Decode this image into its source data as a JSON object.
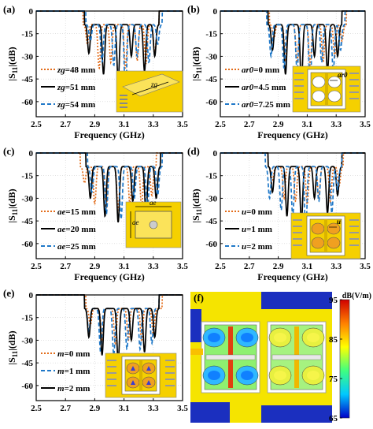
{
  "figure": {
    "colors": {
      "orange": "#e36c1a",
      "black": "#000000",
      "blue": "#1f78c8",
      "grid": "#cfcfcf",
      "inset_yellow": "#f5d000",
      "inset_orange": "#f0a020",
      "inset_bg_blue": "#1b2fbf",
      "inset_white": "#ffffff"
    },
    "field_map": {
      "label": "(f)",
      "colorbar_title": "dB(V/m)",
      "colorbar_ticks": [
        "95",
        "85",
        "75",
        "65"
      ],
      "colorbar_range": [
        65,
        95
      ],
      "colormap": [
        "#0000c8",
        "#00c8ff",
        "#40ff80",
        "#ffff00",
        "#ff8000",
        "#d00000"
      ]
    }
  },
  "chart_data": [
    {
      "type": "line",
      "panel_label": "(a)",
      "xlabel": "Frequency (GHz)",
      "ylabel": "|S11|(dB)",
      "xlim": [
        2.5,
        3.5
      ],
      "ylim": [
        -70,
        0
      ],
      "xticks": [
        "2.5",
        "2.7",
        "2.9",
        "3.1",
        "3.3",
        "3.5"
      ],
      "yticks": [
        "0",
        "-15",
        "-30",
        "-45",
        "-60"
      ],
      "xlabel_visible": true,
      "series": [
        {
          "name": "zg=48 mm",
          "name_italic": "zg",
          "name_rest": "=48 mm",
          "color": "#e36c1a",
          "dash": "2,2",
          "dips": [
            [
              2.85,
              -22
            ],
            [
              2.93,
              -38
            ],
            [
              3.01,
              -34
            ],
            [
              3.11,
              -38
            ],
            [
              3.19,
              -33
            ],
            [
              3.25,
              -35
            ],
            [
              3.31,
              -28
            ]
          ],
          "passband": [
            2.82,
            3.34
          ]
        },
        {
          "name": "zg=51 mm",
          "name_italic": "zg",
          "name_rest": "=51 mm",
          "color": "#000000",
          "dash": "",
          "dips": [
            [
              2.86,
              -28
            ],
            [
              2.96,
              -42
            ],
            [
              3.06,
              -46
            ],
            [
              3.15,
              -30
            ],
            [
              3.24,
              -40
            ],
            [
              3.31,
              -30
            ]
          ],
          "passband": [
            2.83,
            3.34
          ]
        },
        {
          "name": "zg=54 mm",
          "name_italic": "zg",
          "name_rest": "=54 mm",
          "color": "#1f78c8",
          "dash": "5,3",
          "dips": [
            [
              2.87,
              -20
            ],
            [
              2.95,
              -34
            ],
            [
              3.03,
              -36
            ],
            [
              3.11,
              -56
            ],
            [
              3.19,
              -30
            ],
            [
              3.27,
              -34
            ],
            [
              3.33,
              -22
            ]
          ],
          "passband": [
            2.84,
            3.36
          ]
        }
      ],
      "inset": {
        "kind": "box",
        "dim_label": "zg"
      }
    },
    {
      "type": "line",
      "panel_label": "(b)",
      "xlabel": "Frequency (GHz)",
      "ylabel": "|S11|(dB)",
      "xlim": [
        2.5,
        3.5
      ],
      "ylim": [
        -70,
        0
      ],
      "xticks": [
        "2.5",
        "2.7",
        "2.9",
        "3.1",
        "3.3",
        "3.5"
      ],
      "yticks": [
        "0",
        "-15",
        "-30",
        "-45",
        "-60"
      ],
      "xlabel_visible": true,
      "series": [
        {
          "name": "ar0=0 mm",
          "name_italic": "ar0",
          "name_rest": "=0 mm",
          "color": "#e36c1a",
          "dash": "2,2",
          "dips": [
            [
              2.87,
              -18
            ],
            [
              2.95,
              -32
            ],
            [
              3.03,
              -34
            ],
            [
              3.12,
              -36
            ],
            [
              3.21,
              -34
            ],
            [
              3.29,
              -30
            ],
            [
              3.34,
              -20
            ]
          ],
          "passband": [
            2.84,
            3.37
          ]
        },
        {
          "name": "ar0=4.5 mm",
          "name_italic": "ar0",
          "name_rest": "=4.5 mm",
          "color": "#000000",
          "dash": "",
          "dips": [
            [
              2.86,
              -26
            ],
            [
              2.95,
              -42
            ],
            [
              3.06,
              -48
            ],
            [
              3.15,
              -30
            ],
            [
              3.24,
              -40
            ],
            [
              3.31,
              -30
            ]
          ],
          "passband": [
            2.83,
            3.34
          ]
        },
        {
          "name": "ar0=7.25 mm",
          "name_italic": "ar0",
          "name_rest": "=7.25 mm",
          "color": "#1f78c8",
          "dash": "5,3",
          "dips": [
            [
              2.85,
              -30
            ],
            [
              2.94,
              -38
            ],
            [
              3.03,
              -40
            ],
            [
              3.12,
              -50
            ],
            [
              3.2,
              -34
            ],
            [
              3.28,
              -40
            ],
            [
              3.33,
              -26
            ]
          ],
          "passband": [
            2.82,
            3.36
          ]
        }
      ],
      "inset": {
        "kind": "resonator",
        "dim_label": "ar0"
      }
    },
    {
      "type": "line",
      "panel_label": "(c)",
      "xlabel": "Frequency (GHz)",
      "ylabel": "|S11|(dB)",
      "xlim": [
        2.5,
        3.5
      ],
      "ylim": [
        -70,
        0
      ],
      "xticks": [
        "2.5",
        "2.7",
        "2.9",
        "3.1",
        "3.3",
        "3.5"
      ],
      "yticks": [
        "0",
        "-15",
        "-30",
        "-45",
        "-60"
      ],
      "xlabel_visible": true,
      "series": [
        {
          "name": "ae=15 mm",
          "name_italic": "ae",
          "name_rest": "=15 mm",
          "color": "#e36c1a",
          "dash": "2,2",
          "dips": [
            [
              2.83,
              -20
            ],
            [
              2.9,
              -34
            ],
            [
              2.98,
              -36
            ],
            [
              3.06,
              -38
            ],
            [
              3.14,
              -34
            ],
            [
              3.22,
              -36
            ],
            [
              3.29,
              -28
            ]
          ],
          "passband": [
            2.8,
            3.32
          ]
        },
        {
          "name": "ae=20 mm",
          "name_italic": "ae",
          "name_rest": "=20 mm",
          "color": "#000000",
          "dash": "",
          "dips": [
            [
              2.87,
              -30
            ],
            [
              2.97,
              -42
            ],
            [
              3.06,
              -46
            ],
            [
              3.16,
              -32
            ],
            [
              3.25,
              -40
            ],
            [
              3.32,
              -30
            ]
          ],
          "passband": [
            2.84,
            3.35
          ]
        },
        {
          "name": "ae=25 mm",
          "name_italic": "ae",
          "name_rest": "=25 mm",
          "color": "#1f78c8",
          "dash": "5,3",
          "dips": [
            [
              2.88,
              -26
            ],
            [
              2.98,
              -40
            ],
            [
              3.08,
              -44
            ],
            [
              3.17,
              -30
            ],
            [
              3.26,
              -38
            ],
            [
              3.33,
              -28
            ]
          ],
          "passband": [
            2.85,
            3.36
          ]
        }
      ],
      "inset": {
        "kind": "frame",
        "dim_label": "ae"
      }
    },
    {
      "type": "line",
      "panel_label": "(d)",
      "xlabel": "Frequency (GHz)",
      "ylabel": "|S11|(dB)",
      "xlim": [
        2.5,
        3.5
      ],
      "ylim": [
        -70,
        0
      ],
      "xticks": [
        "2.5",
        "2.7",
        "2.9",
        "3.1",
        "3.3",
        "3.5"
      ],
      "yticks": [
        "0",
        "-15",
        "-30",
        "-45",
        "-60"
      ],
      "xlabel_visible": true,
      "series": [
        {
          "name": "u=0 mm",
          "name_italic": "u",
          "name_rest": "=0 mm",
          "color": "#e36c1a",
          "dash": "2,2",
          "dips": [
            [
              2.86,
              -18
            ],
            [
              2.94,
              -30
            ],
            [
              3.02,
              -32
            ],
            [
              3.1,
              -34
            ],
            [
              3.18,
              -30
            ],
            [
              3.26,
              -32
            ],
            [
              3.32,
              -22
            ]
          ],
          "passband": [
            2.83,
            3.35
          ]
        },
        {
          "name": "u=1 mm",
          "name_italic": "u",
          "name_rest": "=1 mm",
          "color": "#000000",
          "dash": "",
          "dips": [
            [
              2.86,
              -26
            ],
            [
              2.96,
              -42
            ],
            [
              3.06,
              -46
            ],
            [
              3.15,
              -30
            ],
            [
              3.24,
              -40
            ],
            [
              3.31,
              -28
            ]
          ],
          "passband": [
            2.83,
            3.34
          ]
        },
        {
          "name": "u=2 mm",
          "name_italic": "u",
          "name_rest": "=2 mm",
          "color": "#1f78c8",
          "dash": "5,3",
          "dips": [
            [
              2.84,
              -30
            ],
            [
              2.92,
              -38
            ],
            [
              3.0,
              -42
            ],
            [
              3.09,
              -52
            ],
            [
              3.18,
              -32
            ],
            [
              3.27,
              -40
            ],
            [
              3.31,
              -24
            ]
          ],
          "passband": [
            2.81,
            3.34
          ]
        }
      ],
      "inset": {
        "kind": "resonator-u",
        "dim_label": "u"
      }
    },
    {
      "type": "line",
      "panel_label": "(e)",
      "xlabel": "",
      "ylabel": "|S11|(dB)",
      "xlim": [
        2.5,
        3.5
      ],
      "ylim": [
        -70,
        0
      ],
      "xticks": [
        "2.5",
        "2.7",
        "2.9",
        "3.1",
        "3.3",
        "3.5"
      ],
      "yticks": [
        "0",
        "-15",
        "-30",
        "-45",
        "-60"
      ],
      "xlabel_visible": false,
      "series": [
        {
          "name": "m=0 mm",
          "name_italic": "m",
          "name_rest": "=0 mm",
          "color": "#e36c1a",
          "dash": "2,2",
          "dips": [
            [
              2.87,
              -20
            ],
            [
              2.95,
              -30
            ],
            [
              3.04,
              -32
            ],
            [
              3.13,
              -30
            ],
            [
              3.22,
              -30
            ],
            [
              3.3,
              -26
            ]
          ],
          "passband": [
            2.84,
            3.36
          ]
        },
        {
          "name": "m=1 mm",
          "name_italic": "m",
          "name_rest": "=1 mm",
          "color": "#1f78c8",
          "dash": "5,3",
          "dips": [
            [
              2.86,
              -24
            ],
            [
              2.94,
              -38
            ],
            [
              3.03,
              -40
            ],
            [
              3.12,
              -36
            ],
            [
              3.21,
              -36
            ],
            [
              3.29,
              -32
            ]
          ],
          "passband": [
            2.83,
            3.34
          ]
        },
        {
          "name": "m=2 mm",
          "name_italic": "m",
          "name_rest": "=2 mm",
          "color": "#000000",
          "dash": "",
          "dips": [
            [
              2.86,
              -28
            ],
            [
              2.95,
              -40
            ],
            [
              3.06,
              -44
            ],
            [
              3.15,
              -30
            ],
            [
              3.24,
              -38
            ],
            [
              3.31,
              -28
            ]
          ],
          "passband": [
            2.83,
            3.34
          ]
        }
      ],
      "inset": {
        "kind": "resonator-m",
        "dim_label": ""
      }
    }
  ]
}
